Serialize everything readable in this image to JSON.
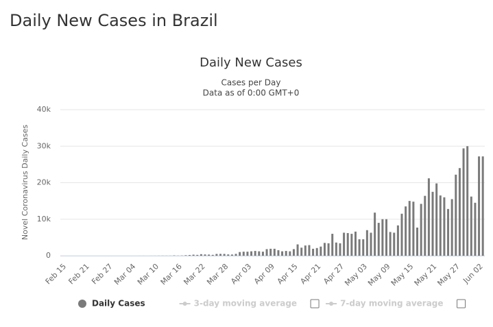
{
  "page_title": "Daily New Cases in Brazil",
  "chart_data": {
    "type": "bar",
    "title": "Daily New Cases",
    "subtitle": [
      "Cases per Day",
      "Data as of 0:00 GMT+0"
    ],
    "y_label": "Novel Coronavirus Daily Cases",
    "categories": [
      "Feb 15",
      null,
      null,
      null,
      null,
      null,
      "Feb 21",
      null,
      null,
      null,
      null,
      null,
      "Feb 27",
      null,
      null,
      null,
      null,
      null,
      "Mar 04",
      null,
      null,
      null,
      null,
      null,
      "Mar 10",
      null,
      null,
      null,
      null,
      null,
      "Mar 16",
      null,
      null,
      null,
      null,
      null,
      "Mar 22",
      null,
      null,
      null,
      null,
      null,
      "Mar 28",
      null,
      null,
      null,
      null,
      null,
      "Apr 03",
      null,
      null,
      null,
      null,
      null,
      "Apr 09",
      null,
      null,
      null,
      null,
      null,
      "Apr 15",
      null,
      null,
      null,
      null,
      null,
      "Apr 21",
      null,
      null,
      null,
      null,
      null,
      "Apr 27",
      null,
      null,
      null,
      null,
      null,
      "May 03",
      null,
      null,
      null,
      null,
      null,
      "May 09",
      null,
      null,
      null,
      null,
      null,
      "May 15",
      null,
      null,
      null,
      null,
      null,
      "May 21",
      null,
      null,
      null,
      null,
      null,
      "May 27",
      null,
      null,
      null,
      null,
      null,
      "Jun 02",
      null
    ],
    "series": [
      {
        "name": "Daily Cases",
        "color": "#7a7a7a",
        "visible": true,
        "values": [
          0,
          0,
          0,
          0,
          0,
          0,
          0,
          0,
          0,
          0,
          0,
          1,
          0,
          0,
          1,
          0,
          0,
          0,
          0,
          1,
          5,
          6,
          0,
          7,
          9,
          18,
          25,
          21,
          23,
          79,
          34,
          57,
          137,
          193,
          283,
          224,
          418,
          345,
          310,
          232,
          482,
          502,
          487,
          352,
          323,
          500,
          1000,
          1100,
          1100,
          1200,
          1300,
          1200,
          1100,
          1800,
          1900,
          1900,
          1500,
          1200,
          1300,
          1200,
          1800,
          3100,
          2200,
          2800,
          2900,
          1900,
          2100,
          2500,
          3500,
          3400,
          6000,
          3600,
          3400,
          6300,
          6200,
          6000,
          6600,
          4500,
          4500,
          7000,
          6300,
          11800,
          9000,
          10000,
          10000,
          6500,
          6300,
          8300,
          11500,
          13500,
          15000,
          14800,
          7700,
          14200,
          16400,
          21200,
          17500,
          19800,
          16500,
          16000,
          12800,
          15500,
          22200,
          24000,
          29400,
          30000,
          16200,
          14500,
          27200,
          27200
        ]
      },
      {
        "name": "3-day moving average",
        "color": "#cccccc",
        "visible": false
      },
      {
        "name": "7-day moving average",
        "color": "#cccccc",
        "visible": false
      }
    ],
    "ylim": [
      0,
      40000
    ],
    "yticks": [
      0,
      {
        "value": 10000,
        "label": "10k"
      },
      {
        "value": 20000,
        "label": "20k"
      },
      {
        "value": 30000,
        "label": "30k"
      },
      {
        "value": 40000,
        "label": "40k"
      }
    ],
    "grid": true
  }
}
